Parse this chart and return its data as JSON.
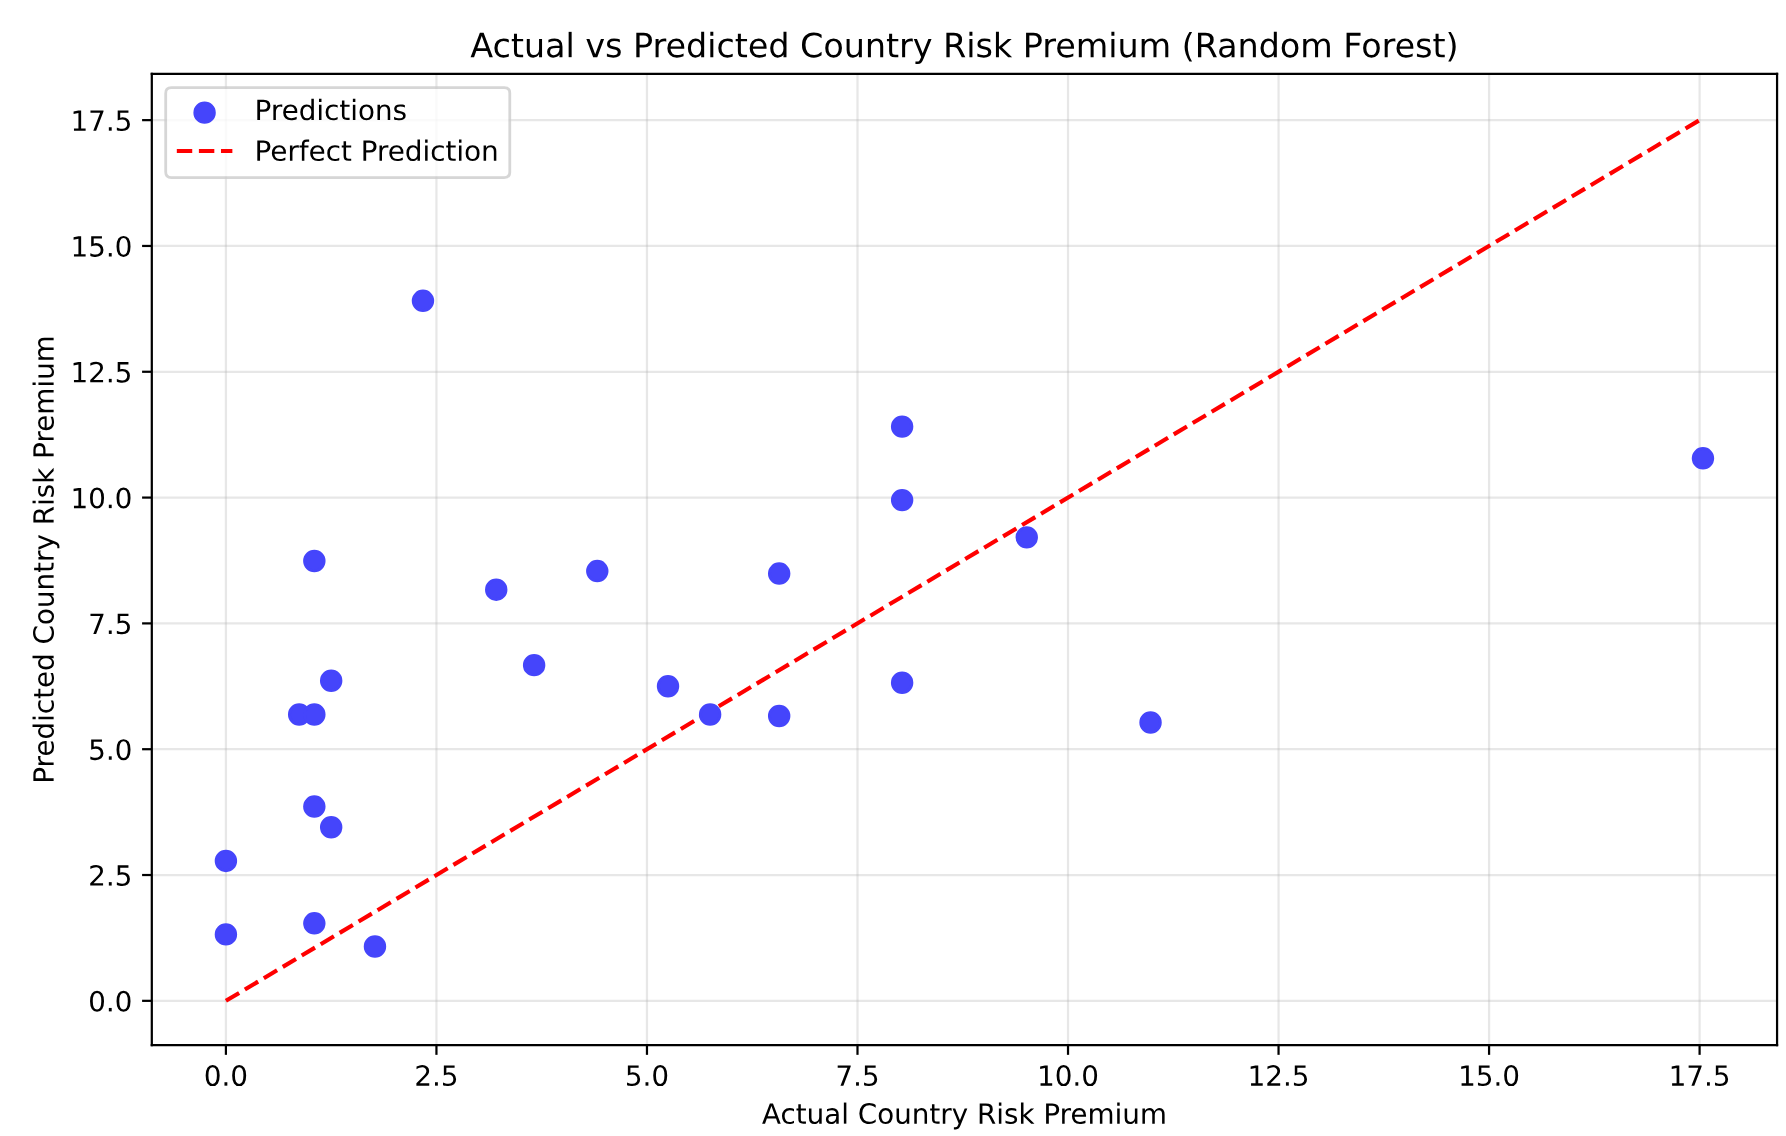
{
  "chart_data": {
    "type": "scatter",
    "title": "Actual vs Predicted Country Risk Premium (Random Forest)",
    "xlabel": "Actual Country Risk Premium",
    "ylabel": "Predicted Country Risk Premium",
    "xlim": [
      -0.88,
      18.42
    ],
    "ylim": [
      -0.88,
      18.42
    ],
    "xticks": [
      {
        "value": 0,
        "label": "0.0"
      },
      {
        "value": 2.5,
        "label": "2.5"
      },
      {
        "value": 5,
        "label": "5.0"
      },
      {
        "value": 7.5,
        "label": "7.5"
      },
      {
        "value": 10,
        "label": "10.0"
      },
      {
        "value": 12.5,
        "label": "12.5"
      },
      {
        "value": 15,
        "label": "15.0"
      },
      {
        "value": 17.5,
        "label": "17.5"
      }
    ],
    "yticks": [
      {
        "value": 0,
        "label": "0.0"
      },
      {
        "value": 2.5,
        "label": "2.5"
      },
      {
        "value": 5,
        "label": "5.0"
      },
      {
        "value": 7.5,
        "label": "7.5"
      },
      {
        "value": 10,
        "label": "10.0"
      },
      {
        "value": 12.5,
        "label": "12.5"
      },
      {
        "value": 15,
        "label": "15.0"
      },
      {
        "value": 17.5,
        "label": "17.5"
      }
    ],
    "grid": true,
    "legend": "top left",
    "series": [
      {
        "name": "Predictions",
        "color": "#4545fb",
        "marker": "circle",
        "x": [
          0,
          0,
          1.05,
          1.77,
          1.05,
          1.25,
          0.87,
          1.05,
          1.25,
          1.05,
          2.34,
          3.21,
          3.66,
          4.41,
          5.25,
          5.75,
          8.03,
          8.03,
          9.51,
          6.57,
          6.57,
          8.03,
          10.98,
          17.54
        ],
        "values": [
          2.78,
          1.32,
          1.54,
          1.08,
          3.86,
          3.45,
          5.69,
          5.69,
          6.36,
          8.74,
          13.91,
          8.17,
          6.67,
          8.54,
          6.25,
          5.69,
          11.41,
          9.95,
          9.21,
          8.49,
          5.66,
          6.32,
          5.53,
          10.78
        ]
      },
      {
        "name": "Perfect Prediction",
        "type": "line",
        "color": "#ff0000",
        "line_style": "dashed",
        "marker": "none",
        "x": [
          0,
          17.54
        ],
        "values": [
          0,
          17.54
        ]
      }
    ]
  }
}
